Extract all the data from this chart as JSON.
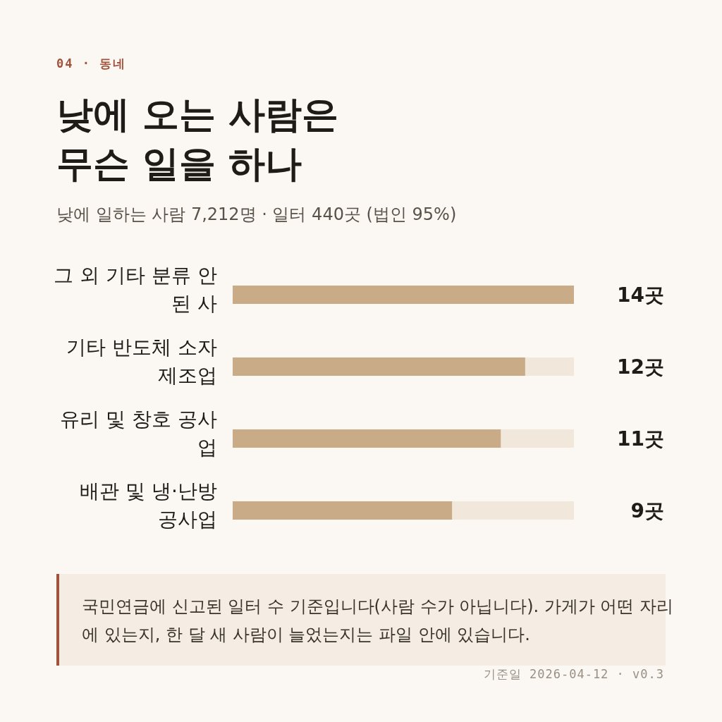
{
  "chart_data": {
    "type": "bar",
    "orientation": "horizontal",
    "title": "낮에 오는 사람은\n무슨 일을 하나",
    "subtitle": "낮에 일하는 사람 7,212명 · 일터 440곳 (법인 95%)",
    "categories": [
      "그 외 기타 분류 안된 사",
      "기타 반도체 소자 제조업",
      "유리 및 창호 공사업",
      "배관 및 냉·난방 공사업"
    ],
    "values": [
      14,
      12,
      11,
      9
    ],
    "value_labels": [
      "14곳",
      "12곳",
      "11곳",
      "9곳"
    ],
    "color": "#c9ab88",
    "xlim": [
      0,
      14
    ],
    "tick_labels": "y",
    "annotations": [
      "04 · 동네",
      "국민연금에 신고된 일터 수 기준입니다(사람 수가 아닙니다). 가게가 어떤 자리에 있는지, 한 달 새 사람이 늘었는지는 파일 안에 있습니다.",
      "기준일 2026-04-12 · v0.3"
    ]
  }
}
